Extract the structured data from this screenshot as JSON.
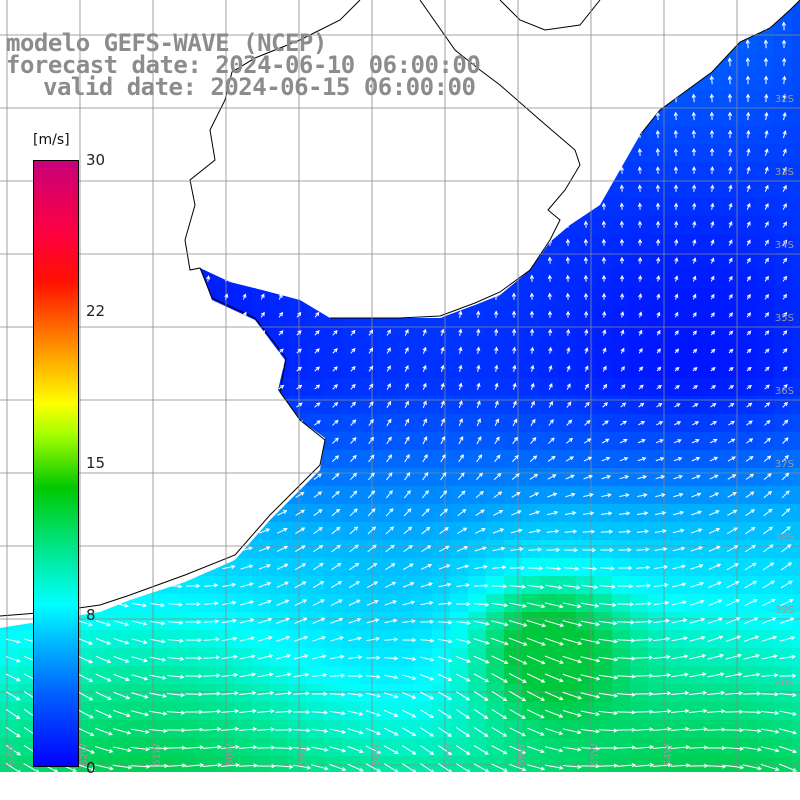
{
  "title": {
    "line1": "modelo GEFS-WAVE (NCEP)",
    "line2": "forecast date: 2024-06-10 06:00:00",
    "line3": "valid date: 2024-06-15 06:00:00"
  },
  "colorbar": {
    "units": "[m/s]",
    "ticks": [
      "30",
      "22",
      "15",
      "8",
      "0"
    ],
    "min": 0,
    "max": 30,
    "colors": [
      "#0000ff",
      "#00b4ff",
      "#00ffff",
      "#00c800",
      "#ffff00",
      "#ff8800",
      "#ff1000",
      "#c8007a"
    ]
  },
  "map": {
    "variable": "wind speed and direction over ocean",
    "lat_labels": [
      "32S",
      "33S",
      "34S",
      "35S",
      "36S",
      "37S",
      "38S",
      "39S",
      "40S"
    ],
    "lon_labels": [
      "63W",
      "62W",
      "61W",
      "60W",
      "59W",
      "58W",
      "57W",
      "56W",
      "55W",
      "54W"
    ],
    "land_color": "#ffffff",
    "grid_color": "#888888",
    "coast_color": "#000000"
  }
}
